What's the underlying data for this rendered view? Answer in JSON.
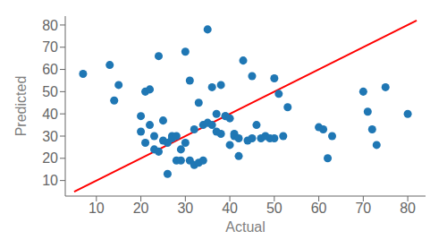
{
  "chart_data": {
    "type": "scatter",
    "xlabel": "Actual",
    "ylabel": "Predicted",
    "xlim": [
      3,
      84
    ],
    "ylim": [
      3,
      84
    ],
    "xticks": [
      10,
      20,
      30,
      40,
      50,
      60,
      70,
      80
    ],
    "yticks": [
      10,
      20,
      30,
      40,
      50,
      60,
      70,
      80
    ],
    "grid": false,
    "series": [
      {
        "type": "line",
        "color": "red",
        "x": [
          5,
          82
        ],
        "values": [
          5,
          82
        ]
      },
      {
        "type": "scatter",
        "color": "#1f77b4",
        "x": [
          7,
          13,
          14,
          15,
          20,
          20,
          21,
          21,
          22,
          22,
          23,
          23,
          24,
          24,
          25,
          25,
          26,
          26,
          27,
          27,
          28,
          28,
          29,
          29,
          30,
          30,
          31,
          31,
          32,
          32,
          33,
          33,
          34,
          34,
          35,
          35,
          36,
          36,
          37,
          37,
          38,
          38,
          39,
          39,
          40,
          40,
          41,
          41,
          42,
          42,
          43,
          44,
          45,
          45,
          46,
          47,
          48,
          49,
          50,
          50,
          51,
          52,
          53,
          60,
          61,
          62,
          63,
          70,
          71,
          72,
          73,
          75,
          80
        ],
        "values": [
          58,
          62,
          46,
          53,
          32,
          39,
          27,
          50,
          35,
          51,
          24,
          30,
          23,
          66,
          28,
          37,
          13,
          27,
          29,
          30,
          19,
          30,
          19,
          24,
          27,
          68,
          19,
          55,
          17,
          33,
          18,
          45,
          19,
          35,
          78,
          36,
          52,
          35,
          32,
          40,
          31,
          53,
          39,
          39,
          38,
          26,
          30,
          31,
          21,
          29,
          64,
          28,
          29,
          57,
          35,
          29,
          30,
          29,
          29,
          56,
          49,
          30,
          43,
          34,
          33,
          20,
          30,
          50,
          41,
          33,
          26,
          52,
          40
        ]
      }
    ]
  }
}
